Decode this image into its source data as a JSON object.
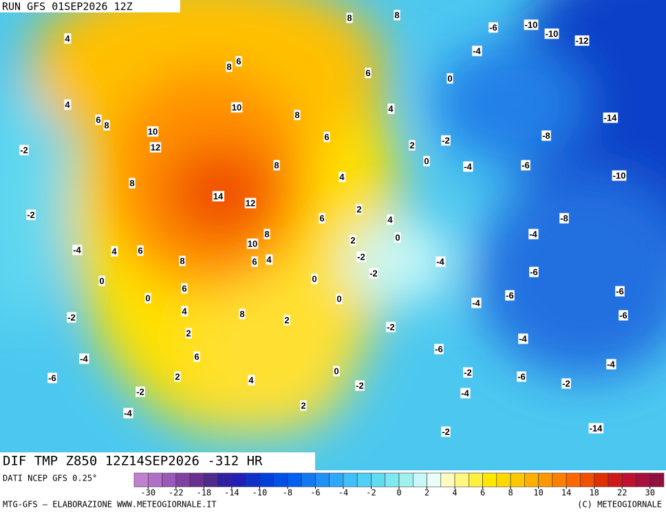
{
  "header": {
    "run": "RUN GFS 01SEP2026 12Z"
  },
  "title": "DIF TMP Z850 12Z14SEP2026 -312 HR",
  "source": "DATI NCEP GFS 0.25°",
  "footer": {
    "left": "MTG-GFS — ELABORAZIONE WWW.METEOGIORNALE.IT",
    "right": "(C) METEOGIORNALE"
  },
  "colorbar": {
    "colors": [
      "#c080d0",
      "#b070c8",
      "#9a58b8",
      "#8040a0",
      "#6a3090",
      "#502a8a",
      "#3020a0",
      "#2020b8",
      "#1030c8",
      "#0040d8",
      "#0050e8",
      "#0060f0",
      "#1478f0",
      "#2090f5",
      "#30a8f8",
      "#40c0f8",
      "#50d0f5",
      "#60dcf0",
      "#80e8f0",
      "#a0f0f0",
      "#c8f8f8",
      "#e8fff8",
      "#fffcc0",
      "#fff880",
      "#fff040",
      "#ffe800",
      "#ffd800",
      "#ffc800",
      "#ffb000",
      "#ff9800",
      "#ff8000",
      "#ff6800",
      "#f05000",
      "#e03000",
      "#d01818",
      "#c01030",
      "#a81040",
      "#901040"
    ],
    "ticks": [
      -30,
      -22,
      -18,
      -14,
      -10,
      -8,
      -6,
      -4,
      -2,
      0,
      2,
      4,
      6,
      8,
      10,
      14,
      18,
      22,
      30
    ]
  },
  "contour_labels": [
    4,
    8,
    8,
    6,
    8,
    6,
    4,
    6,
    8,
    10,
    8,
    10,
    12,
    6,
    4,
    8,
    4,
    8,
    14,
    12,
    6,
    2,
    4,
    8,
    10,
    6,
    4,
    8,
    4,
    6,
    2,
    0,
    6,
    4,
    2,
    6,
    2,
    8,
    2,
    4,
    2,
    0,
    0,
    0,
    0,
    0,
    0,
    0,
    2,
    -6,
    -10,
    -10,
    -12,
    -4,
    -14,
    -2,
    -4,
    -6,
    -8,
    -10,
    -8,
    -4,
    -2,
    -2,
    -4,
    -2,
    -2,
    -4,
    -6,
    -4,
    -6,
    -6,
    -6,
    -2,
    -4,
    -6,
    -2,
    -4,
    -2,
    -6,
    -4,
    -4,
    -2,
    -6,
    -2,
    -2,
    -4,
    -2,
    -14
  ]
}
